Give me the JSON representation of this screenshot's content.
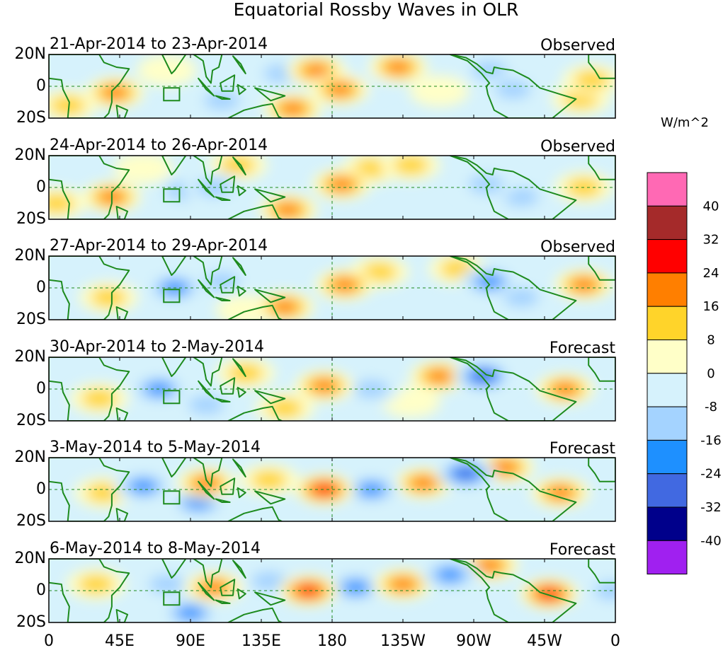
{
  "chart_data": {
    "type": "heatmap",
    "title": "Equatorial Rossby Waves in OLR",
    "units": "W/m^2",
    "x_axis": {
      "range_degrees_east": [
        0,
        360
      ],
      "ticks": [
        {
          "lon": 0,
          "label": "0"
        },
        {
          "lon": 45,
          "label": "45E"
        },
        {
          "lon": 90,
          "label": "90E"
        },
        {
          "lon": 135,
          "label": "135E"
        },
        {
          "lon": 180,
          "label": "180"
        },
        {
          "lon": 225,
          "label": "135W"
        },
        {
          "lon": 270,
          "label": "90W"
        },
        {
          "lon": 315,
          "label": "45W"
        },
        {
          "lon": 360,
          "label": "0"
        }
      ]
    },
    "y_axis": {
      "range_degrees": [
        -20,
        20
      ],
      "ticks": [
        {
          "lat": 20,
          "label": "20N"
        },
        {
          "lat": 0,
          "label": "0"
        },
        {
          "lat": -20,
          "label": "20S"
        }
      ]
    },
    "colorbar": {
      "levels": [
        -40,
        -32,
        -24,
        -16,
        -8,
        0,
        8,
        16,
        24,
        32,
        40
      ],
      "colors_low_to_high": [
        "#a020f0",
        "#00008b",
        "#4169e1",
        "#1e90ff",
        "#a4d3ff",
        "#d6f2fc",
        "#ffffc8",
        "#ffd42a",
        "#ff7f00",
        "#ff0000",
        "#a52a2a",
        "#ff69b4"
      ]
    },
    "panels": [
      {
        "period": "21-Apr-2014 to 23-Apr-2014",
        "label": "Observed",
        "anomalies": [
          {
            "lon": 42,
            "lat": -4,
            "value": 24
          },
          {
            "lon": 12,
            "lat": -12,
            "value": 10
          },
          {
            "lon": 110,
            "lat": -9,
            "value": -12
          },
          {
            "lon": 148,
            "lat": 8,
            "value": -10
          },
          {
            "lon": 155,
            "lat": -14,
            "value": 24
          },
          {
            "lon": 170,
            "lat": 10,
            "value": 20
          },
          {
            "lon": 185,
            "lat": -2,
            "value": 24
          },
          {
            "lon": 200,
            "lat": 4,
            "value": -8
          },
          {
            "lon": 222,
            "lat": 12,
            "value": 18
          },
          {
            "lon": 248,
            "lat": -3,
            "value": 8
          },
          {
            "lon": 295,
            "lat": -2,
            "value": -16
          },
          {
            "lon": 280,
            "lat": 10,
            "value": -10
          },
          {
            "lon": 345,
            "lat": 4,
            "value": 12
          },
          {
            "lon": 338,
            "lat": -8,
            "value": 10
          },
          {
            "lon": 75,
            "lat": 10,
            "value": 6
          }
        ]
      },
      {
        "period": "24-Apr-2014 to 26-Apr-2014",
        "label": "Observed",
        "anomalies": [
          {
            "lon": 40,
            "lat": -6,
            "value": 24
          },
          {
            "lon": 85,
            "lat": -2,
            "value": -12
          },
          {
            "lon": 105,
            "lat": 0,
            "value": -16
          },
          {
            "lon": 120,
            "lat": 14,
            "value": 10
          },
          {
            "lon": 152,
            "lat": -14,
            "value": 24
          },
          {
            "lon": 186,
            "lat": 2,
            "value": 24
          },
          {
            "lon": 205,
            "lat": 12,
            "value": 10
          },
          {
            "lon": 230,
            "lat": 14,
            "value": 14
          },
          {
            "lon": 278,
            "lat": 2,
            "value": -16
          },
          {
            "lon": 300,
            "lat": -6,
            "value": -12
          },
          {
            "lon": 340,
            "lat": 0,
            "value": 16
          },
          {
            "lon": 60,
            "lat": 12,
            "value": 8
          },
          {
            "lon": 5,
            "lat": -10,
            "value": 10
          }
        ]
      },
      {
        "period": "27-Apr-2014 to 29-Apr-2014",
        "label": "Observed",
        "anomalies": [
          {
            "lon": 38,
            "lat": -6,
            "value": 16
          },
          {
            "lon": 80,
            "lat": 0,
            "value": -24
          },
          {
            "lon": 110,
            "lat": 4,
            "value": -10
          },
          {
            "lon": 150,
            "lat": -12,
            "value": 18
          },
          {
            "lon": 188,
            "lat": 2,
            "value": 24
          },
          {
            "lon": 210,
            "lat": 10,
            "value": 12
          },
          {
            "lon": 260,
            "lat": 12,
            "value": 14
          },
          {
            "lon": 280,
            "lat": 4,
            "value": -20
          },
          {
            "lon": 300,
            "lat": -6,
            "value": -10
          },
          {
            "lon": 340,
            "lat": 2,
            "value": 18
          },
          {
            "lon": 125,
            "lat": -14,
            "value": 8
          },
          {
            "lon": 55,
            "lat": 10,
            "value": -8
          }
        ]
      },
      {
        "period": "30-Apr-2014 to 2-May-2014",
        "label": "Forecast",
        "anomalies": [
          {
            "lon": 70,
            "lat": 0,
            "value": -20
          },
          {
            "lon": 100,
            "lat": -10,
            "value": -12
          },
          {
            "lon": 125,
            "lat": 10,
            "value": 12
          },
          {
            "lon": 150,
            "lat": -12,
            "value": 12
          },
          {
            "lon": 175,
            "lat": 2,
            "value": 24
          },
          {
            "lon": 205,
            "lat": 0,
            "value": -16
          },
          {
            "lon": 248,
            "lat": 8,
            "value": 18
          },
          {
            "lon": 276,
            "lat": 8,
            "value": -30
          },
          {
            "lon": 328,
            "lat": 0,
            "value": 22
          },
          {
            "lon": 32,
            "lat": -6,
            "value": 10
          },
          {
            "lon": 230,
            "lat": -8,
            "value": 8
          }
        ]
      },
      {
        "period": "3-May-2014 to 5-May-2014",
        "label": "Forecast",
        "anomalies": [
          {
            "lon": 60,
            "lat": 2,
            "value": -20
          },
          {
            "lon": 95,
            "lat": -8,
            "value": -18
          },
          {
            "lon": 100,
            "lat": 4,
            "value": 20
          },
          {
            "lon": 140,
            "lat": 6,
            "value": 16
          },
          {
            "lon": 175,
            "lat": 0,
            "value": 32
          },
          {
            "lon": 205,
            "lat": 0,
            "value": -24
          },
          {
            "lon": 238,
            "lat": 4,
            "value": 18
          },
          {
            "lon": 265,
            "lat": 10,
            "value": -32
          },
          {
            "lon": 290,
            "lat": 14,
            "value": 20
          },
          {
            "lon": 325,
            "lat": -2,
            "value": 24
          },
          {
            "lon": 35,
            "lat": -2,
            "value": 10
          }
        ]
      },
      {
        "period": "6-May-2014 to 8-May-2014",
        "label": "Forecast",
        "anomalies": [
          {
            "lon": 75,
            "lat": 4,
            "value": -16
          },
          {
            "lon": 90,
            "lat": -14,
            "value": -20
          },
          {
            "lon": 105,
            "lat": 2,
            "value": 22
          },
          {
            "lon": 140,
            "lat": 6,
            "value": -10
          },
          {
            "lon": 165,
            "lat": 0,
            "value": 32
          },
          {
            "lon": 195,
            "lat": 2,
            "value": -24
          },
          {
            "lon": 225,
            "lat": 4,
            "value": 24
          },
          {
            "lon": 255,
            "lat": 10,
            "value": -24
          },
          {
            "lon": 280,
            "lat": 16,
            "value": 22
          },
          {
            "lon": 318,
            "lat": -2,
            "value": 30
          },
          {
            "lon": 358,
            "lat": 0,
            "value": -16
          },
          {
            "lon": 30,
            "lat": 4,
            "value": 10
          }
        ]
      }
    ]
  }
}
